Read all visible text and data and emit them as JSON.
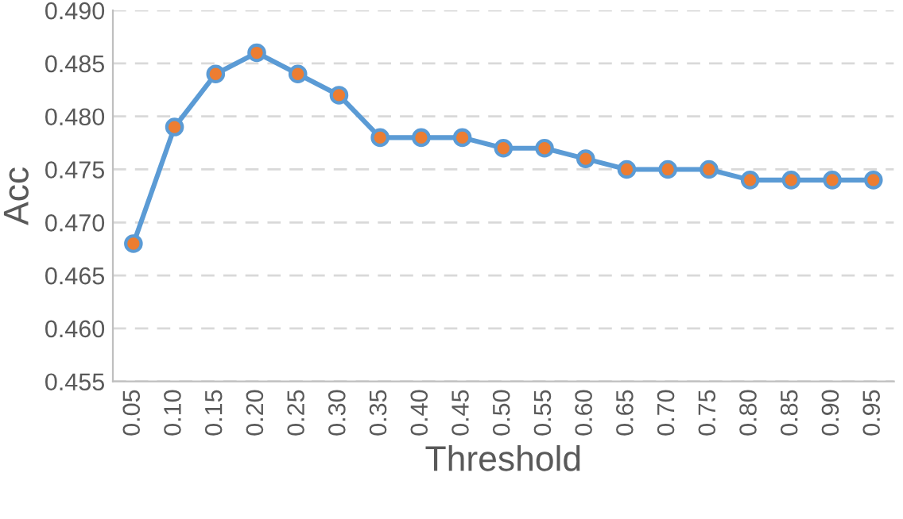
{
  "chart_data": {
    "type": "line",
    "xlabel": "Threshold",
    "ylabel": "Acc",
    "categories": [
      "0.05",
      "0.10",
      "0.15",
      "0.20",
      "0.25",
      "0.30",
      "0.35",
      "0.40",
      "0.45",
      "0.50",
      "0.55",
      "0.60",
      "0.65",
      "0.70",
      "0.75",
      "0.80",
      "0.85",
      "0.90",
      "0.95"
    ],
    "series": [
      {
        "color": "#5b9bd5",
        "values": [
          0.468,
          0.479,
          0.484,
          0.486,
          0.484,
          0.482,
          0.478,
          0.478,
          0.478,
          0.477,
          0.477,
          0.476,
          0.475,
          0.475,
          0.475,
          0.474,
          0.474,
          0.474,
          0.474
        ]
      }
    ],
    "ylim": [
      0.455,
      0.49
    ],
    "yticks": [
      {
        "value": 0.455,
        "label": "0.455"
      },
      {
        "value": 0.46,
        "label": "0.460"
      },
      {
        "value": 0.465,
        "label": "0.465"
      },
      {
        "value": 0.47,
        "label": "0.470"
      },
      {
        "value": 0.475,
        "label": "0.475"
      },
      {
        "value": 0.48,
        "label": "0.480"
      },
      {
        "value": 0.485,
        "label": "0.485"
      },
      {
        "value": 0.49,
        "label": "0.490"
      }
    ],
    "grid": "y",
    "marker": "circle",
    "line_style": "solid",
    "legend": false
  }
}
